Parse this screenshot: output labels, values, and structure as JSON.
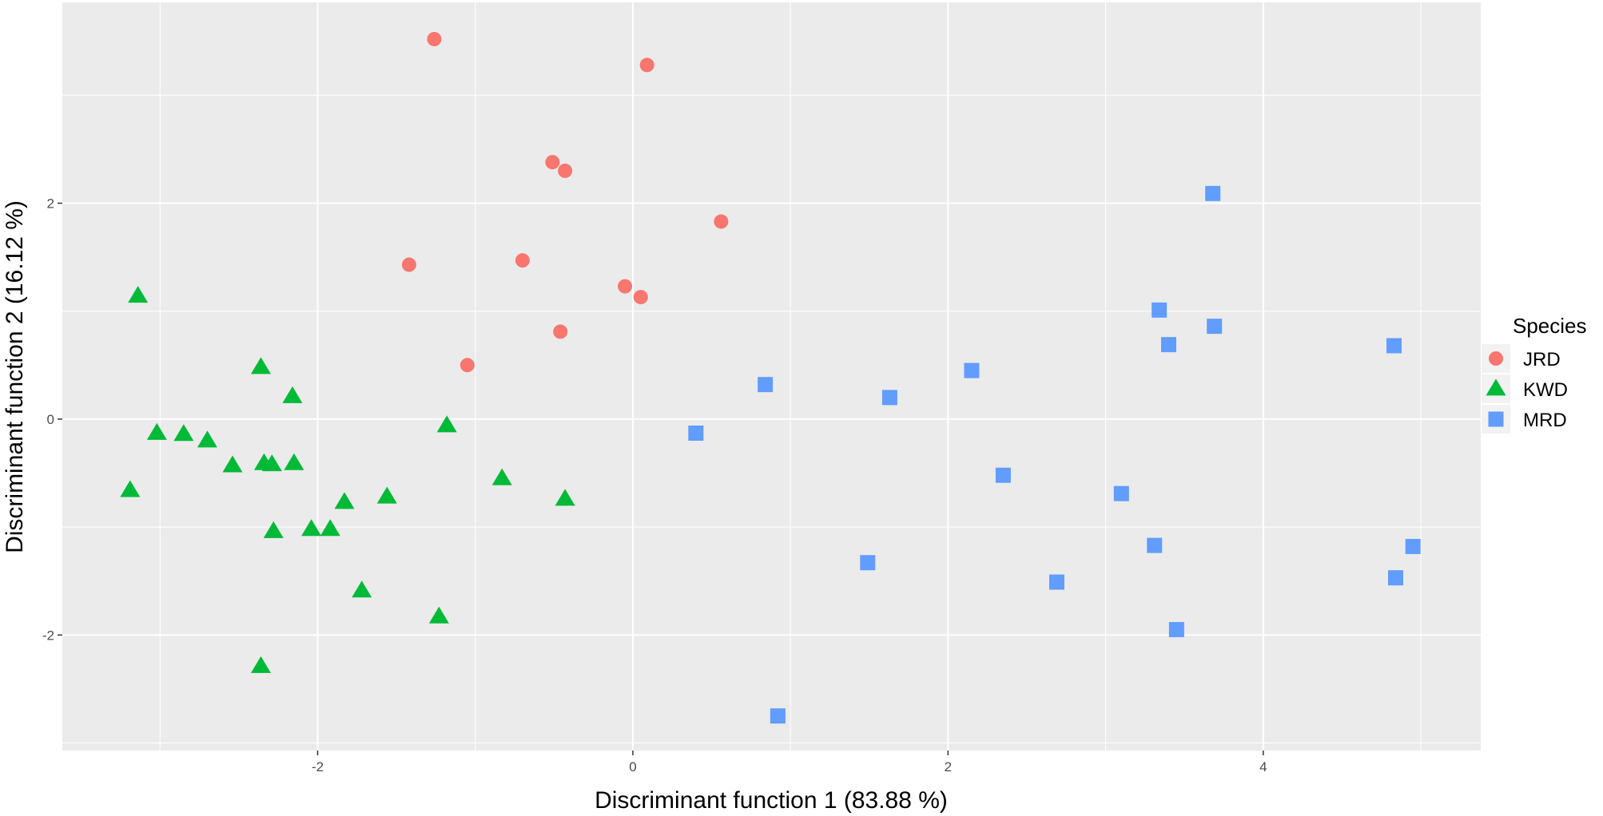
{
  "chart_data": {
    "type": "scatter",
    "xlabel": "Discriminant function 1 (83.88 %)",
    "ylabel": "Discriminant function 2 (16.12 %)",
    "xlim": [
      -3.62,
      5.38
    ],
    "ylim": [
      -3.07,
      3.86
    ],
    "x_major_ticks": [
      -2,
      0,
      2,
      4
    ],
    "x_tick_labels": [
      "-2",
      "0",
      "2",
      "4"
    ],
    "x_minor_ticks": [
      -3,
      -1,
      1,
      3,
      5
    ],
    "y_major_ticks": [
      -2,
      0,
      2
    ],
    "y_tick_labels": [
      "-2",
      "0",
      "2"
    ],
    "y_minor_ticks": [
      -3,
      -1,
      1,
      3
    ],
    "grid": true,
    "legend": {
      "title": "Species",
      "position": "right"
    },
    "series": [
      {
        "name": "JRD",
        "color": "#F8766D",
        "shape": "circle",
        "points": [
          [
            -1.26,
            3.52
          ],
          [
            0.09,
            3.28
          ],
          [
            -0.51,
            2.38
          ],
          [
            -0.43,
            2.3
          ],
          [
            0.56,
            1.83
          ],
          [
            -1.42,
            1.43
          ],
          [
            -0.7,
            1.47
          ],
          [
            -0.05,
            1.23
          ],
          [
            0.05,
            1.13
          ],
          [
            -0.46,
            0.81
          ],
          [
            -1.05,
            0.5
          ]
        ]
      },
      {
        "name": "KWD",
        "color": "#00BA38",
        "shape": "triangle",
        "points": [
          [
            -3.14,
            1.14
          ],
          [
            -2.36,
            0.48
          ],
          [
            -2.16,
            0.21
          ],
          [
            -1.18,
            -0.06
          ],
          [
            -3.02,
            -0.13
          ],
          [
            -2.85,
            -0.14
          ],
          [
            -2.7,
            -0.2
          ],
          [
            -2.54,
            -0.43
          ],
          [
            -2.34,
            -0.41
          ],
          [
            -2.29,
            -0.42
          ],
          [
            -2.15,
            -0.41
          ],
          [
            -0.83,
            -0.55
          ],
          [
            -1.83,
            -0.77
          ],
          [
            -1.56,
            -0.72
          ],
          [
            -0.43,
            -0.74
          ],
          [
            -2.28,
            -1.04
          ],
          [
            -2.04,
            -1.02
          ],
          [
            -1.92,
            -1.02
          ],
          [
            -1.72,
            -1.59
          ],
          [
            -1.23,
            -1.83
          ],
          [
            -2.36,
            -2.29
          ],
          [
            -3.19,
            -0.66
          ]
        ]
      },
      {
        "name": "MRD",
        "color": "#619CFF",
        "shape": "square",
        "points": [
          [
            3.68,
            2.09
          ],
          [
            3.34,
            1.01
          ],
          [
            3.69,
            0.86
          ],
          [
            3.4,
            0.69
          ],
          [
            4.83,
            0.68
          ],
          [
            2.15,
            0.45
          ],
          [
            0.84,
            0.32
          ],
          [
            1.63,
            0.2
          ],
          [
            0.4,
            -0.13
          ],
          [
            2.35,
            -0.52
          ],
          [
            3.1,
            -0.69
          ],
          [
            3.31,
            -1.17
          ],
          [
            4.95,
            -1.18
          ],
          [
            1.49,
            -1.33
          ],
          [
            2.69,
            -1.51
          ],
          [
            4.84,
            -1.47
          ],
          [
            3.45,
            -1.95
          ],
          [
            0.92,
            -2.75
          ]
        ]
      }
    ]
  }
}
